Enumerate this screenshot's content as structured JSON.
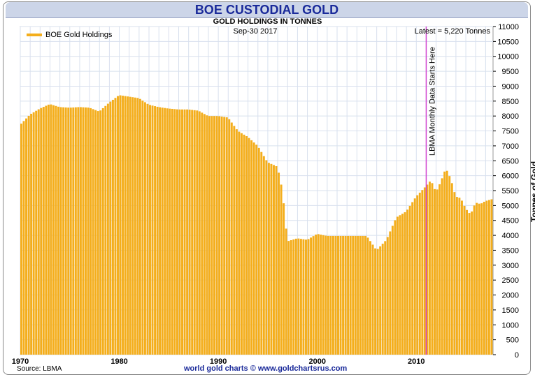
{
  "title": "BOE CUSTODIAL GOLD",
  "subtitle": "GOLD HOLDINGS IN TONNES",
  "date": "Sep-30  2017",
  "latest": "Latest = 5,220 Tonnes",
  "source": "Source: LBMA",
  "credit": "world gold charts © www.goldchartsrus.com",
  "colors": {
    "bar": "#f4ae1c",
    "marker": "#d040d0",
    "grid": "#d8e0ee",
    "title": "#1a2a9a"
  },
  "chart_data": {
    "type": "bar",
    "title": "BOE CUSTODIAL GOLD",
    "subtitle": "GOLD HOLDINGS IN TONNES",
    "ylabel": "Tonnes of Gold",
    "xlabel": "",
    "ylim": [
      0,
      11000
    ],
    "xlim": [
      1970,
      2017.75
    ],
    "yticks": [
      0,
      500,
      1000,
      1500,
      2000,
      2500,
      3000,
      3500,
      4000,
      4500,
      5000,
      5500,
      6000,
      6500,
      7000,
      7500,
      8000,
      8500,
      9000,
      9500,
      10000,
      10500,
      11000
    ],
    "xticks": [
      1970,
      1980,
      1990,
      2000,
      2010
    ],
    "grid": true,
    "legend": {
      "position": "top-left",
      "entries": [
        "BOE Gold Holdings"
      ]
    },
    "annotations": [
      {
        "text": "LBMA Monthly Data Starts Here",
        "x": 2011.0
      }
    ],
    "series": [
      {
        "name": "BOE Gold Holdings",
        "points": [
          [
            1970,
            7700
          ],
          [
            1971,
            8050
          ],
          [
            1972,
            8250
          ],
          [
            1973,
            8400
          ],
          [
            1974,
            8300
          ],
          [
            1975,
            8280
          ],
          [
            1976,
            8300
          ],
          [
            1977,
            8280
          ],
          [
            1978,
            8150
          ],
          [
            1979,
            8450
          ],
          [
            1980,
            8700
          ],
          [
            1981,
            8650
          ],
          [
            1982,
            8600
          ],
          [
            1983,
            8380
          ],
          [
            1984,
            8300
          ],
          [
            1985,
            8250
          ],
          [
            1986,
            8220
          ],
          [
            1987,
            8220
          ],
          [
            1988,
            8180
          ],
          [
            1989,
            8000
          ],
          [
            1990,
            8000
          ],
          [
            1991,
            7950
          ],
          [
            1992,
            7500
          ],
          [
            1993,
            7300
          ],
          [
            1994,
            7000
          ],
          [
            1995,
            6450
          ],
          [
            1996,
            6300
          ],
          [
            1996.5,
            5500
          ],
          [
            1997,
            3800
          ],
          [
            1998,
            3900
          ],
          [
            1999,
            3850
          ],
          [
            2000,
            4050
          ],
          [
            2001,
            3980
          ],
          [
            2002,
            3980
          ],
          [
            2003,
            3980
          ],
          [
            2004,
            3980
          ],
          [
            2005,
            3980
          ],
          [
            2005.5,
            3750
          ],
          [
            2006,
            3500
          ],
          [
            2007,
            3850
          ],
          [
            2008,
            4600
          ],
          [
            2009,
            4800
          ],
          [
            2010,
            5300
          ],
          [
            2011,
            5650
          ],
          [
            2011.5,
            5850
          ],
          [
            2012,
            5450
          ],
          [
            2012.5,
            5800
          ],
          [
            2013,
            6250
          ],
          [
            2013.5,
            5900
          ],
          [
            2014,
            5300
          ],
          [
            2014.5,
            5250
          ],
          [
            2015,
            4900
          ],
          [
            2015.5,
            4700
          ],
          [
            2016,
            5100
          ],
          [
            2016.5,
            5050
          ],
          [
            2017,
            5150
          ],
          [
            2017.75,
            5220
          ]
        ]
      }
    ]
  }
}
